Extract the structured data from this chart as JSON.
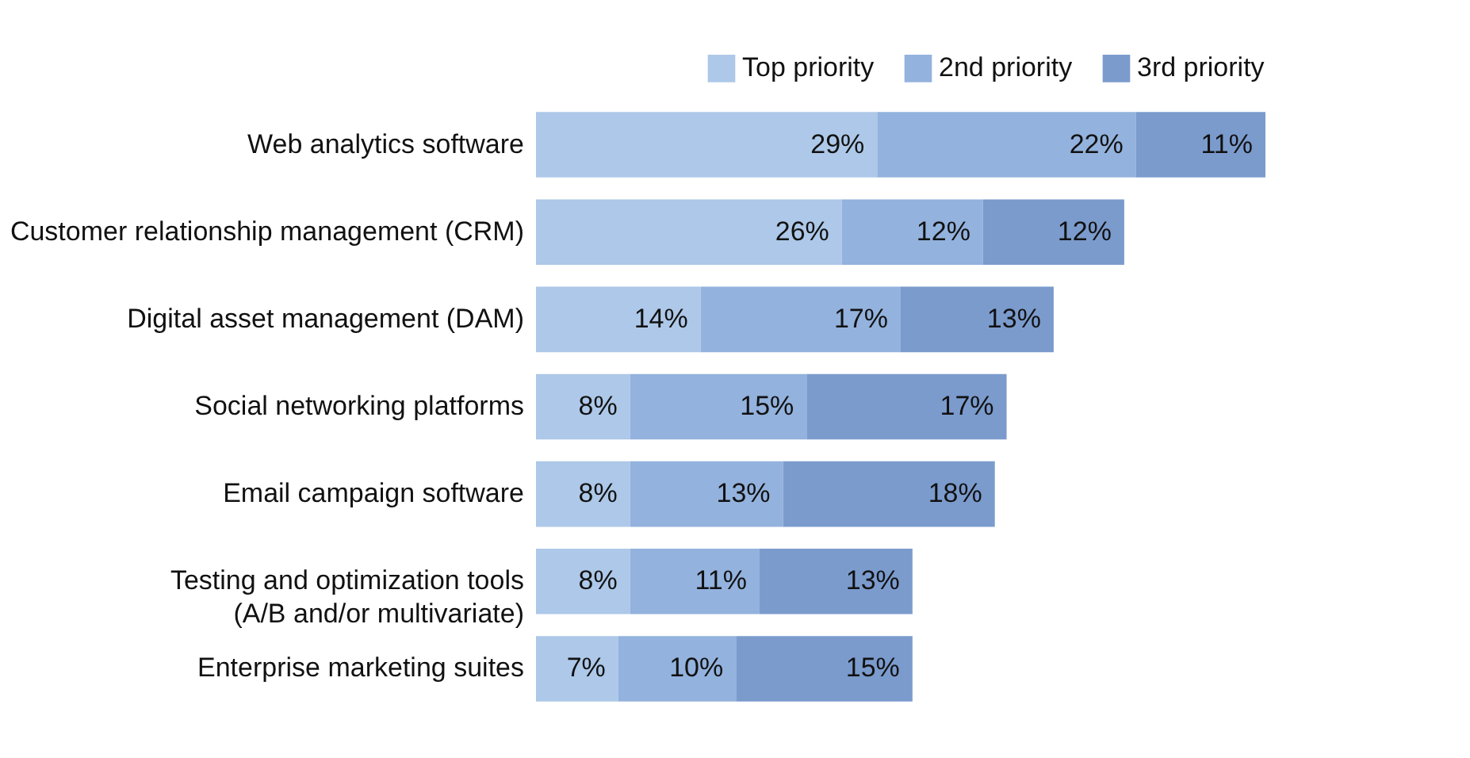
{
  "chart_data": {
    "type": "bar",
    "orientation": "horizontal",
    "stacked": true,
    "legend": "top right",
    "grid": false,
    "categories": [
      "Web analytics software",
      "Customer relationship management (CRM)",
      "Digital asset management (DAM)",
      "Social networking platforms",
      "Email campaign software",
      "Testing and optimization tools\n(A/B and/or multivariate)",
      "Enterprise marketing suites"
    ],
    "series": [
      {
        "name": "Top priority",
        "color": "#adc8e8",
        "values": [
          29,
          26,
          14,
          8,
          8,
          8,
          7
        ],
        "value_labels": [
          "29%",
          "26%",
          "14%",
          "8%",
          "8%",
          "8%",
          "7%"
        ]
      },
      {
        "name": "2nd priority",
        "color": "#93b2dd",
        "values": [
          22,
          12,
          17,
          15,
          13,
          11,
          10
        ],
        "value_labels": [
          "22%",
          "12%",
          "17%",
          "15%",
          "13%",
          "11%",
          "10%"
        ]
      },
      {
        "name": "3rd priority",
        "color": "#7b9bcd",
        "values": [
          11,
          12,
          13,
          17,
          18,
          13,
          15
        ],
        "value_labels": [
          "11%",
          "12%",
          "13%",
          "17%",
          "18%",
          "13%",
          "15%"
        ]
      }
    ]
  }
}
